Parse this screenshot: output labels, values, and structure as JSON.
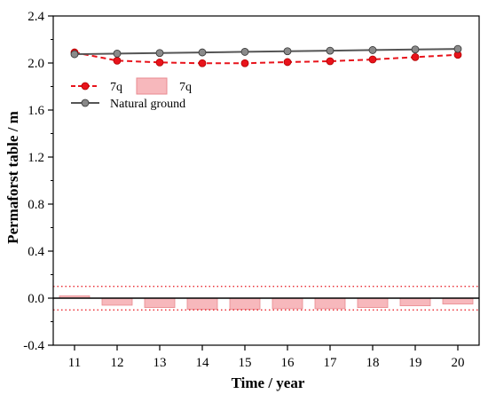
{
  "chart_data": {
    "type": "line",
    "title": "",
    "xlabel": "Time / year",
    "ylabel": "Permaforst table / m",
    "x": [
      11,
      12,
      13,
      14,
      15,
      16,
      17,
      18,
      19,
      20
    ],
    "xlim": [
      10.5,
      20.5
    ],
    "ylim": [
      -0.4,
      2.4
    ],
    "yticks": [
      -0.4,
      0.0,
      0.4,
      0.8,
      1.2,
      1.6,
      2.0,
      2.4
    ],
    "ytick_labels": [
      "-0.4",
      "0.0",
      "0.4",
      "0.8",
      "1.2",
      "1.6",
      "2.0",
      "2.4"
    ],
    "xtick_labels": [
      "11",
      "12",
      "13",
      "14",
      "15",
      "16",
      "17",
      "18",
      "19",
      "20"
    ],
    "grid": false,
    "legend_position": "upper-left",
    "series": [
      {
        "name": "7q",
        "kind": "line",
        "style": "dashed",
        "color": "#e8131b",
        "values": [
          2.09,
          2.02,
          2.005,
          1.998,
          1.998,
          2.008,
          2.015,
          2.03,
          2.05,
          2.07
        ]
      },
      {
        "name": "Natural ground",
        "kind": "line",
        "style": "solid",
        "color": "#555555",
        "values": [
          2.075,
          2.08,
          2.085,
          2.09,
          2.095,
          2.1,
          2.105,
          2.11,
          2.115,
          2.12
        ]
      },
      {
        "name": "7q",
        "kind": "bar",
        "color": "#f7b8bc",
        "edge_color": "#e88a90",
        "values": [
          0.02,
          -0.06,
          -0.08,
          -0.095,
          -0.095,
          -0.09,
          -0.09,
          -0.08,
          -0.065,
          -0.05
        ]
      }
    ],
    "reference_lines": [
      {
        "y": 0.1,
        "style": "dotted",
        "color": "#e8131b"
      },
      {
        "y": -0.1,
        "style": "dotted",
        "color": "#e8131b"
      },
      {
        "y": 0.0,
        "style": "solid",
        "color": "#000000"
      }
    ]
  }
}
